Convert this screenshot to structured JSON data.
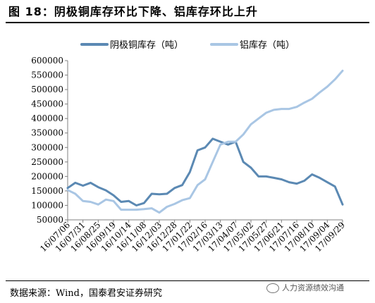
{
  "title": "图 18：阴极铜库存环比下降、铝库存环比上升",
  "source": "数据来源：Wind，国泰君安证券研究",
  "watermark": "人力资源绩效沟通",
  "colors": {
    "copper": "#5b89b3",
    "aluminum": "#a9c6e4",
    "axis": "#808080"
  },
  "chart_data": {
    "type": "line",
    "x": [
      "16/07/06",
      "16/07/20",
      "16/07/31",
      "16/08/10",
      "16/08/25",
      "16/09/05",
      "16/09/19",
      "16/09/29",
      "16/10/14",
      "16/10/26",
      "16/11/08",
      "16/11/20",
      "16/12/03",
      "16/12/15",
      "16/12/28",
      "17/01/10",
      "17/01/22",
      "17/02/05",
      "17/02/16",
      "17/03/01",
      "17/03/13",
      "17/03/25",
      "17/04/07",
      "17/04/19",
      "17/05/02",
      "17/05/14",
      "17/05/27",
      "17/06/08",
      "17/06/21",
      "17/07/03",
      "17/07/16",
      "17/07/28",
      "17/08/10",
      "17/08/22",
      "17/09/04",
      "17/09/16",
      "17/09/29"
    ],
    "x_ticks": [
      "16/07/06",
      "16/07/31",
      "16/08/25",
      "16/09/19",
      "16/10/14",
      "16/11/08",
      "16/12/03",
      "16/12/28",
      "17/01/22",
      "17/02/16",
      "17/03/13",
      "17/04/07",
      "17/05/02",
      "17/05/27",
      "17/06/21",
      "17/07/16",
      "17/08/10",
      "17/09/04",
      "17/09/29"
    ],
    "y_ticks": [
      "50000",
      "100000",
      "150000",
      "200000",
      "250000",
      "300000",
      "350000",
      "400000",
      "450000",
      "500000",
      "550000",
      "600000"
    ],
    "ylim": [
      50000,
      600000
    ],
    "legend_position": "top",
    "series": [
      {
        "name": "阴极铜库存（吨）",
        "color": "#5b89b3",
        "values": [
          160000,
          178000,
          168000,
          178000,
          163000,
          152000,
          135000,
          112000,
          115000,
          100000,
          108000,
          140000,
          138000,
          140000,
          160000,
          170000,
          215000,
          290000,
          300000,
          330000,
          320000,
          310000,
          320000,
          250000,
          230000,
          200000,
          200000,
          195000,
          190000,
          180000,
          175000,
          185000,
          207000,
          195000,
          180000,
          165000,
          103000
        ]
      },
      {
        "name": "铝库存（吨）",
        "color": "#a9c6e4",
        "values": [
          153000,
          140000,
          115000,
          112000,
          103000,
          120000,
          115000,
          85000,
          85000,
          85000,
          87000,
          90000,
          75000,
          95000,
          105000,
          118000,
          125000,
          170000,
          190000,
          250000,
          310000,
          320000,
          320000,
          345000,
          380000,
          400000,
          420000,
          430000,
          433000,
          433000,
          440000,
          455000,
          468000,
          490000,
          510000,
          535000,
          565000
        ]
      }
    ]
  }
}
